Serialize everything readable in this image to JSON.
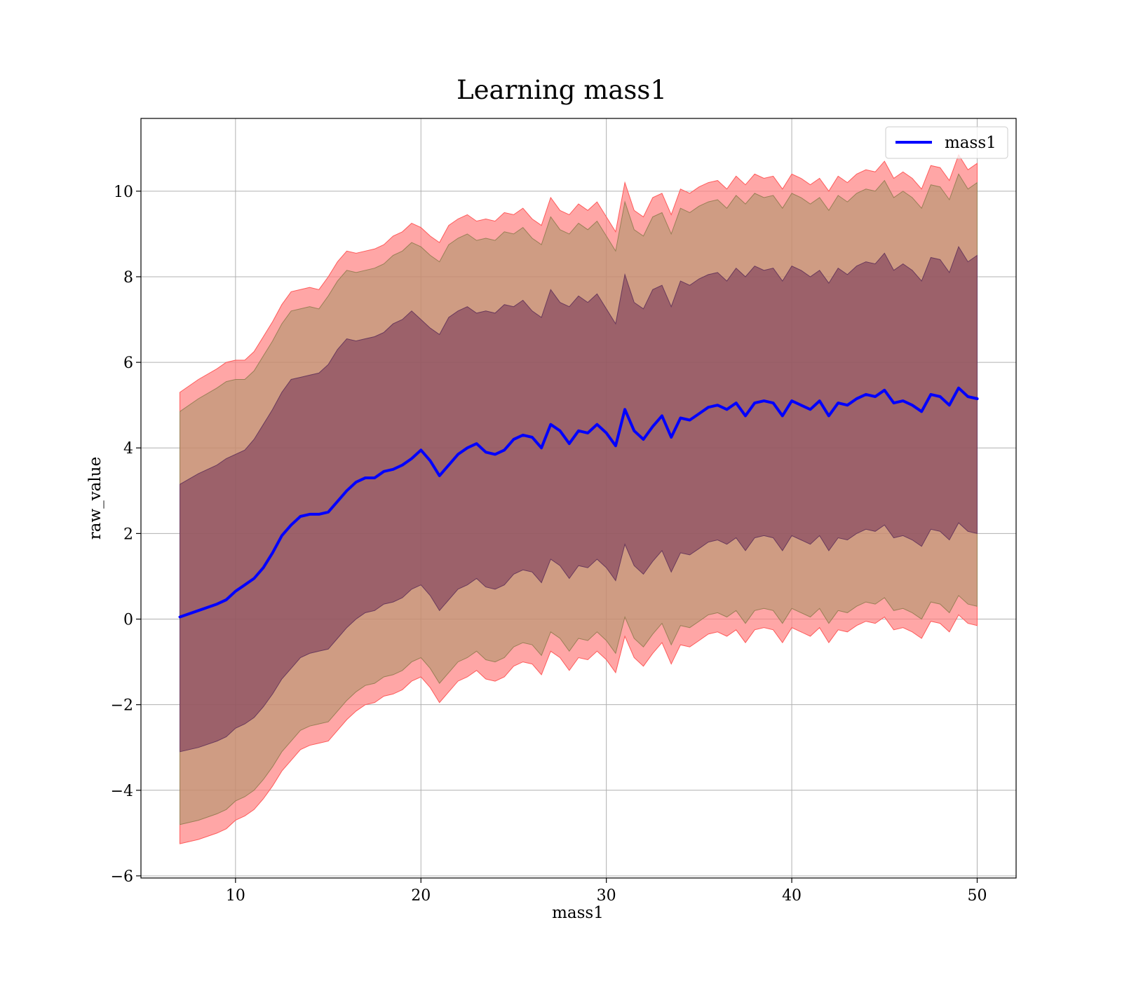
{
  "chart_data": {
    "type": "line",
    "title": "Learning mass1",
    "xlabel": "mass1",
    "ylabel": "raw_value",
    "xlim": [
      4.9,
      52.1
    ],
    "ylim": [
      -6.05,
      11.7
    ],
    "xticks": [
      10,
      20,
      30,
      40,
      50
    ],
    "yticks": [
      -6,
      -4,
      -2,
      0,
      2,
      4,
      6,
      8,
      10
    ],
    "ytick_labels": [
      "−6",
      "−4",
      "−2",
      "0",
      "2",
      "4",
      "6",
      "8",
      "10"
    ],
    "grid": true,
    "legend_position": "top-right",
    "series": [
      {
        "name": "mass1",
        "color": "#0000ff",
        "x": [
          7,
          8,
          9,
          9.5,
          10,
          10.5,
          11,
          11.5,
          12,
          12.5,
          13,
          13.5,
          14,
          14.5,
          15,
          15.5,
          16,
          16.5,
          17,
          17.5,
          18,
          18.5,
          19,
          19.5,
          20,
          20.5,
          21,
          21.5,
          22,
          22.5,
          23,
          23.5,
          24,
          24.5,
          25,
          25.5,
          26,
          26.5,
          27,
          27.5,
          28,
          28.5,
          29,
          29.5,
          30,
          30.5,
          31,
          31.5,
          32,
          32.5,
          33,
          33.5,
          34,
          34.5,
          35,
          35.5,
          36,
          36.5,
          37,
          37.5,
          38,
          38.5,
          39,
          39.5,
          40,
          40.5,
          41,
          41.5,
          42,
          42.5,
          43,
          43.5,
          44,
          44.5,
          45,
          45.5,
          46,
          46.5,
          47,
          47.5,
          48,
          48.5,
          49,
          49.5,
          50
        ],
        "y": [
          0.05,
          0.2,
          0.35,
          0.45,
          0.65,
          0.8,
          0.95,
          1.2,
          1.55,
          1.95,
          2.2,
          2.4,
          2.45,
          2.45,
          2.5,
          2.75,
          3.0,
          3.2,
          3.3,
          3.3,
          3.45,
          3.5,
          3.6,
          3.75,
          3.95,
          3.7,
          3.35,
          3.6,
          3.85,
          4.0,
          4.1,
          3.9,
          3.85,
          3.95,
          4.2,
          4.3,
          4.25,
          4.0,
          4.55,
          4.4,
          4.1,
          4.4,
          4.35,
          4.55,
          4.35,
          4.05,
          4.9,
          4.4,
          4.2,
          4.5,
          4.75,
          4.25,
          4.7,
          4.65,
          4.8,
          4.95,
          5.0,
          4.9,
          5.05,
          4.75,
          5.05,
          5.1,
          5.05,
          4.75,
          5.1,
          5.0,
          4.9,
          5.1,
          4.75,
          5.05,
          5.0,
          5.15,
          5.25,
          5.2,
          5.35,
          5.05,
          5.1,
          5.0,
          4.85,
          5.25,
          5.2,
          5.0,
          5.4,
          5.2,
          5.15
        ],
        "upper_outer": [
          5.3,
          5.6,
          5.85,
          6.0,
          6.05,
          6.05,
          6.25,
          6.6,
          6.95,
          7.35,
          7.65,
          7.7,
          7.75,
          7.7,
          8.0,
          8.35,
          8.6,
          8.55,
          8.6,
          8.65,
          8.75,
          8.95,
          9.05,
          9.25,
          9.15,
          8.95,
          8.8,
          9.2,
          9.35,
          9.45,
          9.3,
          9.35,
          9.3,
          9.5,
          9.45,
          9.6,
          9.35,
          9.2,
          9.85,
          9.55,
          9.45,
          9.7,
          9.55,
          9.75,
          9.4,
          9.05,
          10.2,
          9.55,
          9.4,
          9.85,
          9.95,
          9.45,
          10.05,
          9.95,
          10.1,
          10.2,
          10.25,
          10.05,
          10.35,
          10.15,
          10.4,
          10.3,
          10.35,
          10.05,
          10.4,
          10.3,
          10.15,
          10.3,
          10.0,
          10.35,
          10.2,
          10.4,
          10.5,
          10.45,
          10.7,
          10.3,
          10.45,
          10.3,
          10.05,
          10.6,
          10.55,
          10.25,
          10.85,
          10.5,
          10.65
        ],
        "upper_mid": [
          4.85,
          5.15,
          5.4,
          5.55,
          5.6,
          5.6,
          5.8,
          6.15,
          6.5,
          6.9,
          7.2,
          7.25,
          7.3,
          7.25,
          7.55,
          7.9,
          8.15,
          8.1,
          8.15,
          8.2,
          8.3,
          8.5,
          8.6,
          8.8,
          8.7,
          8.5,
          8.35,
          8.75,
          8.9,
          9.0,
          8.85,
          8.9,
          8.85,
          9.05,
          9.0,
          9.15,
          8.9,
          8.75,
          9.4,
          9.1,
          9.0,
          9.25,
          9.1,
          9.3,
          8.95,
          8.6,
          9.75,
          9.1,
          8.95,
          9.4,
          9.5,
          9.0,
          9.6,
          9.5,
          9.65,
          9.75,
          9.8,
          9.6,
          9.9,
          9.7,
          9.95,
          9.85,
          9.9,
          9.6,
          9.95,
          9.85,
          9.7,
          9.85,
          9.55,
          9.9,
          9.75,
          9.95,
          10.05,
          10.0,
          10.25,
          9.85,
          10.0,
          9.85,
          9.6,
          10.15,
          10.1,
          9.8,
          10.4,
          10.05,
          10.2
        ],
        "upper_inner": [
          3.15,
          3.4,
          3.6,
          3.75,
          3.85,
          3.95,
          4.2,
          4.55,
          4.9,
          5.3,
          5.6,
          5.65,
          5.7,
          5.75,
          5.95,
          6.3,
          6.55,
          6.5,
          6.55,
          6.6,
          6.7,
          6.9,
          7.0,
          7.2,
          7.0,
          6.8,
          6.65,
          7.05,
          7.2,
          7.3,
          7.15,
          7.2,
          7.15,
          7.35,
          7.3,
          7.45,
          7.2,
          7.05,
          7.7,
          7.4,
          7.3,
          7.55,
          7.4,
          7.6,
          7.25,
          6.9,
          8.05,
          7.4,
          7.25,
          7.7,
          7.8,
          7.3,
          7.9,
          7.8,
          7.95,
          8.05,
          8.1,
          7.9,
          8.2,
          8.0,
          8.25,
          8.15,
          8.2,
          7.9,
          8.25,
          8.15,
          8.0,
          8.15,
          7.85,
          8.2,
          8.05,
          8.25,
          8.35,
          8.3,
          8.55,
          8.15,
          8.3,
          8.15,
          7.9,
          8.45,
          8.4,
          8.1,
          8.7,
          8.35,
          8.5
        ],
        "lower_inner": [
          -3.1,
          -3.0,
          -2.85,
          -2.75,
          -2.55,
          -2.45,
          -2.3,
          -2.05,
          -1.75,
          -1.4,
          -1.15,
          -0.9,
          -0.8,
          -0.75,
          -0.7,
          -0.45,
          -0.2,
          0.0,
          0.15,
          0.2,
          0.35,
          0.4,
          0.5,
          0.7,
          0.8,
          0.55,
          0.2,
          0.45,
          0.7,
          0.8,
          0.95,
          0.75,
          0.7,
          0.8,
          1.05,
          1.15,
          1.1,
          0.85,
          1.4,
          1.25,
          0.95,
          1.25,
          1.2,
          1.4,
          1.2,
          0.9,
          1.75,
          1.25,
          1.05,
          1.35,
          1.6,
          1.1,
          1.55,
          1.5,
          1.65,
          1.8,
          1.85,
          1.75,
          1.9,
          1.6,
          1.9,
          1.95,
          1.9,
          1.6,
          1.95,
          1.85,
          1.75,
          1.95,
          1.6,
          1.9,
          1.85,
          2.0,
          2.1,
          2.05,
          2.2,
          1.9,
          1.95,
          1.85,
          1.7,
          2.1,
          2.05,
          1.85,
          2.25,
          2.05,
          2.0
        ],
        "lower_mid": [
          -4.8,
          -4.7,
          -4.55,
          -4.45,
          -4.25,
          -4.15,
          -4.0,
          -3.75,
          -3.45,
          -3.1,
          -2.85,
          -2.6,
          -2.5,
          -2.45,
          -2.4,
          -2.15,
          -1.9,
          -1.7,
          -1.55,
          -1.5,
          -1.35,
          -1.3,
          -1.2,
          -1.0,
          -0.9,
          -1.15,
          -1.5,
          -1.25,
          -1.0,
          -0.9,
          -0.75,
          -0.95,
          -1.0,
          -0.9,
          -0.65,
          -0.55,
          -0.6,
          -0.85,
          -0.3,
          -0.45,
          -0.75,
          -0.45,
          -0.5,
          -0.3,
          -0.5,
          -0.8,
          0.05,
          -0.45,
          -0.65,
          -0.35,
          -0.1,
          -0.6,
          -0.15,
          -0.2,
          -0.05,
          0.1,
          0.15,
          0.05,
          0.2,
          -0.1,
          0.2,
          0.25,
          0.2,
          -0.1,
          0.25,
          0.15,
          0.05,
          0.25,
          -0.1,
          0.2,
          0.15,
          0.3,
          0.4,
          0.35,
          0.5,
          0.2,
          0.25,
          0.15,
          0.0,
          0.4,
          0.35,
          0.15,
          0.55,
          0.35,
          0.3
        ],
        "lower_outer": [
          -5.25,
          -5.15,
          -5.0,
          -4.9,
          -4.7,
          -4.6,
          -4.45,
          -4.2,
          -3.9,
          -3.55,
          -3.3,
          -3.05,
          -2.95,
          -2.9,
          -2.85,
          -2.6,
          -2.35,
          -2.15,
          -2.0,
          -1.95,
          -1.8,
          -1.75,
          -1.65,
          -1.45,
          -1.35,
          -1.6,
          -1.95,
          -1.7,
          -1.45,
          -1.35,
          -1.2,
          -1.4,
          -1.45,
          -1.35,
          -1.1,
          -1.0,
          -1.05,
          -1.3,
          -0.75,
          -0.9,
          -1.2,
          -0.9,
          -0.95,
          -0.75,
          -0.95,
          -1.25,
          -0.4,
          -0.9,
          -1.1,
          -0.8,
          -0.55,
          -1.05,
          -0.6,
          -0.65,
          -0.5,
          -0.35,
          -0.3,
          -0.4,
          -0.25,
          -0.55,
          -0.25,
          -0.2,
          -0.25,
          -0.55,
          -0.2,
          -0.3,
          -0.4,
          -0.2,
          -0.55,
          -0.25,
          -0.3,
          -0.15,
          -0.05,
          -0.1,
          0.05,
          -0.25,
          -0.2,
          -0.3,
          -0.45,
          -0.05,
          -0.1,
          -0.3,
          0.1,
          -0.1,
          -0.15
        ]
      }
    ]
  }
}
